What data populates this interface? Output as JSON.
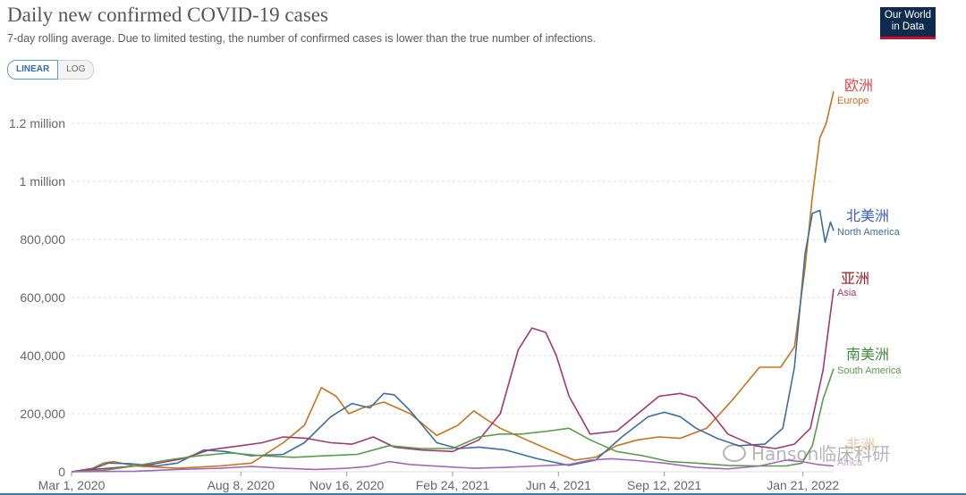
{
  "header": {
    "title": "Daily new confirmed COVID-19 cases",
    "subtitle": "7-day rolling average. Due to limited testing, the number of confirmed cases is lower than the true number of infections.",
    "logo_line1": "Our World",
    "logo_line2": "in Data"
  },
  "toggle": {
    "linear_label": "LINEAR",
    "log_label": "LOG",
    "selected": "LINEAR"
  },
  "watermark": {
    "text": "Hanson临床科研"
  },
  "colors": {
    "europe": "#c7731f",
    "north_america": "#3d6e9e",
    "asia": "#a03a6e",
    "south_america": "#5a9b4d",
    "africa": "#a367b8",
    "grid": "#dddddd",
    "axis_text": "#666666"
  },
  "chart_data": {
    "type": "line",
    "title": "Daily new confirmed COVID-19 cases",
    "xlabel": "",
    "ylabel": "",
    "ylim": [
      0,
      1300000
    ],
    "x_range_days": [
      0,
      696
    ],
    "x_ticks": [
      {
        "day": 0,
        "label": "Mar 1, 2020"
      },
      {
        "day": 160,
        "label": "Aug 8, 2020"
      },
      {
        "day": 260,
        "label": "Nov 16, 2020"
      },
      {
        "day": 360,
        "label": "Feb 24, 2021"
      },
      {
        "day": 460,
        "label": "Jun 4, 2021"
      },
      {
        "day": 560,
        "label": "Sep 12, 2021"
      },
      {
        "day": 691,
        "label": "Jan 21, 2022"
      }
    ],
    "y_ticks": [
      {
        "value": 0,
        "label": "0"
      },
      {
        "value": 200000,
        "label": "200,000"
      },
      {
        "value": 400000,
        "label": "400,000"
      },
      {
        "value": 600000,
        "label": "600,000"
      },
      {
        "value": 800000,
        "label": "800,000"
      },
      {
        "value": 1000000,
        "label": "1 million"
      },
      {
        "value": 1200000,
        "label": "1.2 million"
      }
    ],
    "grid": true,
    "series": [
      {
        "key": "europe",
        "name": "Europe",
        "label_zh": "欧洲",
        "points": [
          [
            0,
            0
          ],
          [
            20,
            12000
          ],
          [
            30,
            30000
          ],
          [
            40,
            35000
          ],
          [
            60,
            20000
          ],
          [
            100,
            12000
          ],
          [
            140,
            20000
          ],
          [
            170,
            30000
          ],
          [
            200,
            100000
          ],
          [
            220,
            160000
          ],
          [
            236,
            290000
          ],
          [
            250,
            260000
          ],
          [
            262,
            200000
          ],
          [
            275,
            220000
          ],
          [
            295,
            240000
          ],
          [
            320,
            200000
          ],
          [
            345,
            125000
          ],
          [
            365,
            160000
          ],
          [
            380,
            210000
          ],
          [
            392,
            180000
          ],
          [
            405,
            150000
          ],
          [
            430,
            110000
          ],
          [
            455,
            70000
          ],
          [
            475,
            40000
          ],
          [
            495,
            50000
          ],
          [
            515,
            90000
          ],
          [
            535,
            110000
          ],
          [
            555,
            120000
          ],
          [
            575,
            115000
          ],
          [
            600,
            150000
          ],
          [
            625,
            250000
          ],
          [
            650,
            360000
          ],
          [
            670,
            360000
          ],
          [
            683,
            430000
          ],
          [
            693,
            700000
          ],
          [
            700,
            950000
          ],
          [
            707,
            1150000
          ],
          [
            713,
            1200000
          ],
          [
            720,
            1310000
          ]
        ]
      },
      {
        "key": "north_america",
        "name": "North America",
        "label_zh": "北美洲",
        "points": [
          [
            0,
            0
          ],
          [
            20,
            10000
          ],
          [
            35,
            30000
          ],
          [
            55,
            28000
          ],
          [
            80,
            20000
          ],
          [
            100,
            30000
          ],
          [
            125,
            75000
          ],
          [
            145,
            70000
          ],
          [
            170,
            55000
          ],
          [
            200,
            60000
          ],
          [
            220,
            100000
          ],
          [
            245,
            190000
          ],
          [
            265,
            235000
          ],
          [
            282,
            220000
          ],
          [
            295,
            270000
          ],
          [
            305,
            265000
          ],
          [
            320,
            210000
          ],
          [
            345,
            100000
          ],
          [
            365,
            80000
          ],
          [
            385,
            85000
          ],
          [
            410,
            75000
          ],
          [
            440,
            45000
          ],
          [
            470,
            22000
          ],
          [
            495,
            40000
          ],
          [
            520,
            120000
          ],
          [
            545,
            190000
          ],
          [
            560,
            205000
          ],
          [
            575,
            190000
          ],
          [
            590,
            150000
          ],
          [
            610,
            115000
          ],
          [
            630,
            90000
          ],
          [
            655,
            95000
          ],
          [
            672,
            150000
          ],
          [
            683,
            360000
          ],
          [
            693,
            750000
          ],
          [
            700,
            890000
          ],
          [
            707,
            900000
          ],
          [
            712,
            790000
          ],
          [
            717,
            860000
          ],
          [
            720,
            830000
          ]
        ]
      },
      {
        "key": "asia",
        "name": "Asia",
        "label_zh": "亚洲",
        "points": [
          [
            0,
            0
          ],
          [
            20,
            8000
          ],
          [
            45,
            15000
          ],
          [
            75,
            25000
          ],
          [
            105,
            45000
          ],
          [
            130,
            75000
          ],
          [
            160,
            90000
          ],
          [
            180,
            100000
          ],
          [
            200,
            120000
          ],
          [
            222,
            115000
          ],
          [
            245,
            100000
          ],
          [
            265,
            95000
          ],
          [
            285,
            120000
          ],
          [
            305,
            85000
          ],
          [
            330,
            75000
          ],
          [
            360,
            70000
          ],
          [
            385,
            110000
          ],
          [
            405,
            200000
          ],
          [
            422,
            420000
          ],
          [
            435,
            495000
          ],
          [
            448,
            480000
          ],
          [
            458,
            400000
          ],
          [
            470,
            260000
          ],
          [
            490,
            130000
          ],
          [
            515,
            140000
          ],
          [
            535,
            200000
          ],
          [
            555,
            260000
          ],
          [
            575,
            270000
          ],
          [
            590,
            255000
          ],
          [
            605,
            200000
          ],
          [
            620,
            130000
          ],
          [
            645,
            90000
          ],
          [
            665,
            80000
          ],
          [
            683,
            95000
          ],
          [
            698,
            150000
          ],
          [
            710,
            350000
          ],
          [
            720,
            630000
          ]
        ]
      },
      {
        "key": "south_america",
        "name": "South America",
        "label_zh": "南美洲",
        "points": [
          [
            0,
            0
          ],
          [
            30,
            5000
          ],
          [
            60,
            20000
          ],
          [
            90,
            40000
          ],
          [
            120,
            55000
          ],
          [
            150,
            65000
          ],
          [
            180,
            55000
          ],
          [
            210,
            50000
          ],
          [
            240,
            55000
          ],
          [
            270,
            60000
          ],
          [
            300,
            90000
          ],
          [
            330,
            80000
          ],
          [
            360,
            80000
          ],
          [
            385,
            120000
          ],
          [
            405,
            130000
          ],
          [
            425,
            130000
          ],
          [
            450,
            140000
          ],
          [
            470,
            150000
          ],
          [
            490,
            110000
          ],
          [
            515,
            70000
          ],
          [
            540,
            55000
          ],
          [
            565,
            35000
          ],
          [
            590,
            30000
          ],
          [
            620,
            22000
          ],
          [
            650,
            20000
          ],
          [
            675,
            20000
          ],
          [
            690,
            30000
          ],
          [
            700,
            90000
          ],
          [
            710,
            250000
          ],
          [
            720,
            355000
          ]
        ]
      },
      {
        "key": "africa",
        "name": "Africa",
        "label_zh": "非洲",
        "points": [
          [
            0,
            0
          ],
          [
            60,
            2000
          ],
          [
            100,
            8000
          ],
          [
            140,
            12000
          ],
          [
            170,
            18000
          ],
          [
            200,
            12000
          ],
          [
            230,
            8000
          ],
          [
            260,
            12000
          ],
          [
            280,
            18000
          ],
          [
            300,
            35000
          ],
          [
            320,
            25000
          ],
          [
            350,
            18000
          ],
          [
            380,
            12000
          ],
          [
            410,
            15000
          ],
          [
            440,
            20000
          ],
          [
            470,
            25000
          ],
          [
            490,
            40000
          ],
          [
            510,
            45000
          ],
          [
            530,
            40000
          ],
          [
            560,
            30000
          ],
          [
            590,
            15000
          ],
          [
            620,
            10000
          ],
          [
            650,
            20000
          ],
          [
            675,
            40000
          ],
          [
            690,
            35000
          ],
          [
            705,
            25000
          ],
          [
            720,
            20000
          ]
        ]
      }
    ]
  }
}
